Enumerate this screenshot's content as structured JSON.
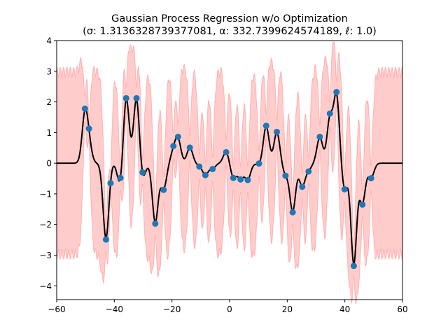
{
  "chart_data": {
    "type": "line",
    "title": "Gaussian Process Regression w/o Optimization",
    "subtitle": "(σ: 1.3136328739377081, α: 332.7399624574189, ℓ: 1.0)",
    "xlabel": "",
    "ylabel": "",
    "xlim": [
      -60,
      60
    ],
    "ylim": [
      -4.45,
      4
    ],
    "xticks": [
      -60,
      -40,
      -20,
      0,
      20,
      40,
      60
    ],
    "yticks": [
      -4,
      -3,
      -2,
      -1,
      0,
      1,
      2,
      3,
      4
    ],
    "xtick_labels": [
      "−60",
      "−40",
      "−20",
      "0",
      "20",
      "40",
      "60"
    ],
    "ytick_labels": [
      "−4",
      "−3",
      "−2",
      "−1",
      "0",
      "1",
      "2",
      "3",
      "4"
    ],
    "grid": false,
    "series": [
      {
        "type": "scatter",
        "color": "#1f77b4",
        "x": [
          -50.2,
          -48.8,
          -42.9,
          -41.3,
          -37.9,
          -35.9,
          -32.3,
          -30.2,
          -25.8,
          -22.9,
          -19.5,
          -17.9,
          -13.8,
          -10.5,
          -8.4,
          -5.9,
          -1.2,
          1.3,
          3.8,
          6.3,
          10.2,
          12.7,
          16.4,
          19.4,
          21.9,
          25.2,
          27.4,
          31.3,
          34.8,
          37.1,
          39.9,
          43.1,
          46.1,
          49.1
        ],
        "y": [
          1.78,
          1.13,
          -2.49,
          -0.65,
          -0.48,
          2.12,
          2.12,
          -0.3,
          -1.97,
          -0.87,
          0.56,
          0.86,
          0.51,
          -0.11,
          -0.39,
          -0.19,
          0.36,
          -0.48,
          -0.53,
          -0.55,
          -0.01,
          1.22,
          1.02,
          -0.41,
          -1.6,
          -0.77,
          -0.27,
          0.86,
          1.62,
          2.32,
          -0.85,
          -3.35,
          -1.35,
          -0.49
        ]
      },
      {
        "type": "line",
        "color": "#000000",
        "note_band": "#ff0000"
      }
    ],
    "band_halfwidth": 2.78,
    "band_fill_color": "#ff0000",
    "mean_color": "#000000"
  }
}
